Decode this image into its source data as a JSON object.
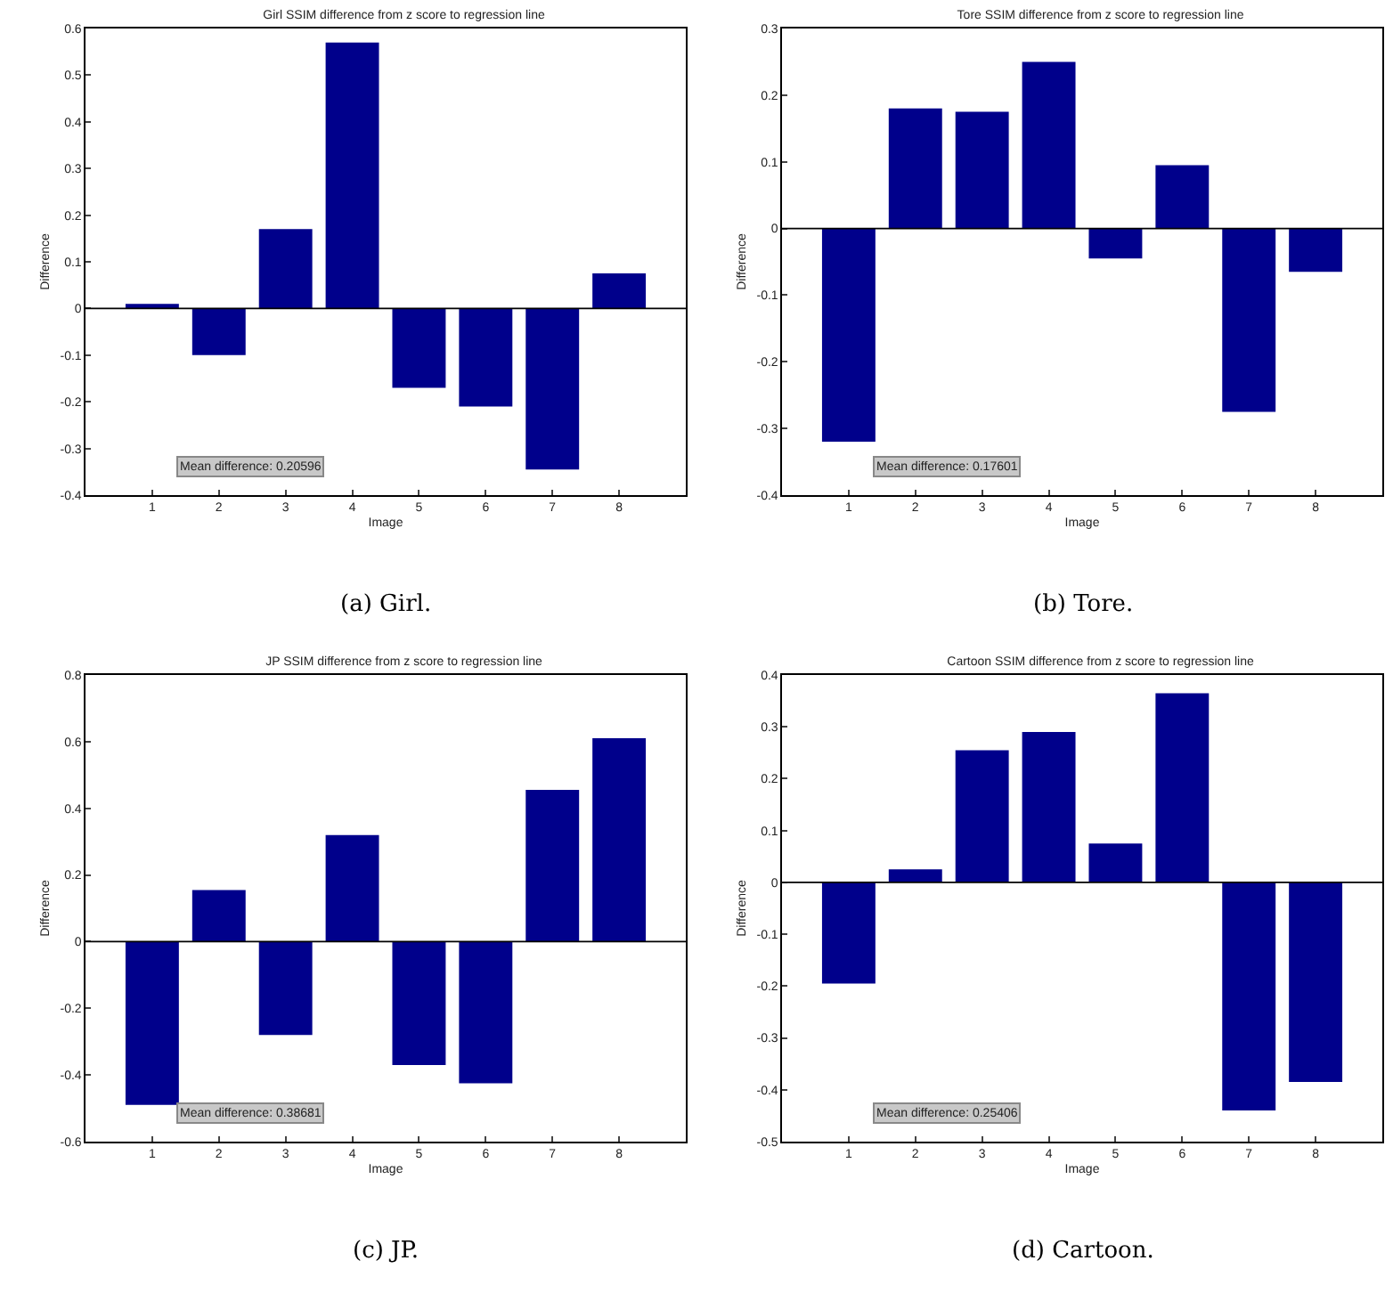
{
  "chart_data": [
    {
      "type": "bar",
      "title": "Girl SSIM difference from z score to regression line",
      "xlabel": "Image",
      "ylabel": "Difference",
      "categories": [
        "1",
        "2",
        "3",
        "4",
        "5",
        "6",
        "7",
        "8"
      ],
      "values": [
        0.01,
        -0.1,
        0.17,
        0.57,
        -0.17,
        -0.21,
        -0.345,
        0.075
      ],
      "color": "#00008b",
      "ylim": [
        -0.4,
        0.6
      ],
      "yticks": [
        -0.4,
        -0.3,
        -0.2,
        -0.1,
        0,
        0.1,
        0.2,
        0.3,
        0.4,
        0.5,
        0.6
      ],
      "grid": false,
      "annotations": [
        "Mean difference: 0.20596",
        "(a) Girl."
      ],
      "ref_lines": [
        {
          "axis": "y",
          "value": 0
        }
      ]
    },
    {
      "type": "bar",
      "title": "Tore SSIM difference from z score to regression line",
      "xlabel": "Image",
      "ylabel": "Difference",
      "categories": [
        "1",
        "2",
        "3",
        "4",
        "5",
        "6",
        "7",
        "8"
      ],
      "values": [
        -0.32,
        0.18,
        0.175,
        0.25,
        -0.045,
        0.095,
        -0.275,
        -0.065
      ],
      "color": "#00008b",
      "ylim": [
        -0.4,
        0.3
      ],
      "yticks": [
        -0.4,
        -0.3,
        -0.2,
        -0.1,
        0,
        0.1,
        0.2,
        0.3
      ],
      "grid": false,
      "annotations": [
        "Mean difference: 0.17601",
        "(b) Tore."
      ],
      "ref_lines": [
        {
          "axis": "y",
          "value": 0
        }
      ]
    },
    {
      "type": "bar",
      "title": "JP SSIM difference from z score to regression line",
      "xlabel": "Image",
      "ylabel": "Difference",
      "categories": [
        "1",
        "2",
        "3",
        "4",
        "5",
        "6",
        "7",
        "8"
      ],
      "values": [
        -0.49,
        0.155,
        -0.28,
        0.32,
        -0.37,
        -0.425,
        0.455,
        0.61
      ],
      "color": "#00008b",
      "ylim": [
        -0.6,
        0.8
      ],
      "yticks": [
        -0.6,
        -0.4,
        -0.2,
        0,
        0.2,
        0.4,
        0.6,
        0.8
      ],
      "grid": false,
      "annotations": [
        "Mean difference: 0.38681",
        "(c) JP."
      ],
      "ref_lines": [
        {
          "axis": "y",
          "value": 0
        }
      ]
    },
    {
      "type": "bar",
      "title": "Cartoon SSIM difference from z score to regression line",
      "xlabel": "Image",
      "ylabel": "Difference",
      "categories": [
        "1",
        "2",
        "3",
        "4",
        "5",
        "6",
        "7",
        "8"
      ],
      "values": [
        -0.195,
        0.025,
        0.255,
        0.29,
        0.075,
        0.365,
        -0.44,
        -0.385
      ],
      "color": "#00008b",
      "ylim": [
        -0.5,
        0.4
      ],
      "yticks": [
        -0.5,
        -0.4,
        -0.3,
        -0.2,
        -0.1,
        0,
        0.1,
        0.2,
        0.3,
        0.4
      ],
      "grid": false,
      "annotations": [
        "Mean difference: 0.25406",
        "(d) Cartoon."
      ],
      "ref_lines": [
        {
          "axis": "y",
          "value": 0
        }
      ]
    }
  ]
}
